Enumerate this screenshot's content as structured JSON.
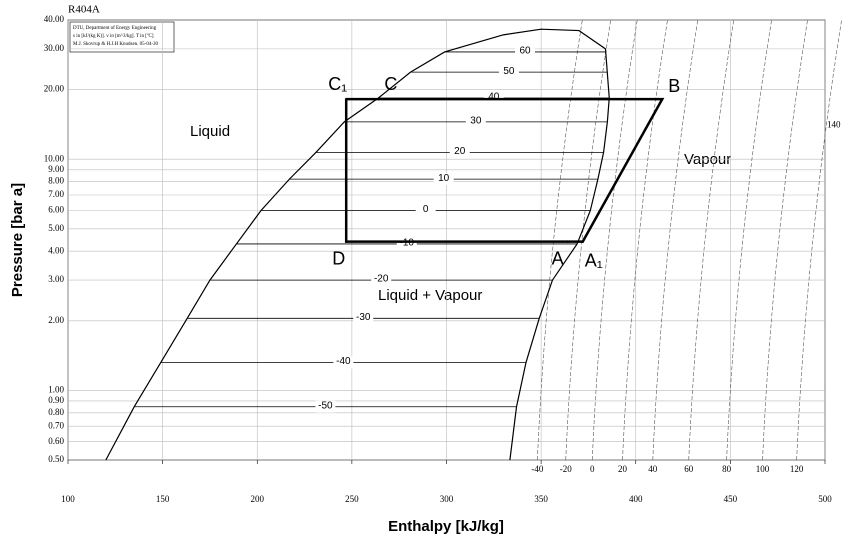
{
  "chart_data": {
    "type": "line",
    "title": "R404A",
    "info": [
      "DTU, Department of Energy Engineering",
      "s in [kJ/(kg K)]. v in [m^3/kg]. T in [ºC]",
      "M.J. Skovrup & H.J.H Knudsen. 05-04-30"
    ],
    "xlabel": "Enthalpy [kJ/kg]",
    "ylabel": "Pressure [bar a]",
    "xlim": [
      100,
      500
    ],
    "ylim": [
      0.5,
      40
    ],
    "log_y": true,
    "grid": true,
    "xticks": [
      100,
      150,
      200,
      250,
      300,
      350,
      400,
      450,
      500
    ],
    "yticks": [
      {
        "value": 0.5,
        "label": "0.50"
      },
      {
        "value": 0.6,
        "label": "0.60"
      },
      {
        "value": 0.7,
        "label": "0.70"
      },
      {
        "value": 0.8,
        "label": "0.80"
      },
      {
        "value": 0.9,
        "label": "0.90"
      },
      {
        "value": 1,
        "label": "1.00"
      },
      {
        "value": 2,
        "label": "2.00"
      },
      {
        "value": 3,
        "label": "3.00"
      },
      {
        "value": 4,
        "label": "4.00"
      },
      {
        "value": 5,
        "label": "5.00"
      },
      {
        "value": 6,
        "label": "6.00"
      },
      {
        "value": 7,
        "label": "7.00"
      },
      {
        "value": 8,
        "label": "8.00"
      },
      {
        "value": 9,
        "label": "9.00"
      },
      {
        "value": 10,
        "label": "10.00"
      },
      {
        "value": 20,
        "label": "20.00"
      },
      {
        "value": 30,
        "label": "30.00"
      },
      {
        "value": 40,
        "label": "40.00"
      }
    ],
    "dome": {
      "h": [
        120,
        135,
        149,
        163,
        175,
        189,
        202,
        217,
        231,
        246,
        264,
        281,
        299,
        330,
        350,
        370,
        384,
        386,
        385,
        383,
        380,
        376,
        369,
        356,
        349,
        342,
        337,
        333.5
      ],
      "p": [
        0.5,
        0.85,
        1.32,
        2.05,
        3.0,
        4.3,
        6.0,
        8.2,
        10.7,
        14.5,
        18.4,
        23.8,
        29.1,
        34.5,
        36.5,
        36,
        30,
        18.4,
        14.5,
        10.7,
        8.2,
        6.0,
        4.3,
        3.0,
        2.05,
        1.32,
        0.85,
        0.5
      ]
    },
    "cycle": {
      "h": [
        247,
        414,
        372,
        247,
        247
      ],
      "p": [
        18.2,
        18.2,
        4.4,
        4.4,
        18.2
      ]
    },
    "points": [
      {
        "label": "C₁",
        "h": 247,
        "p": 18.2
      },
      {
        "label": "C",
        "h": 264,
        "p": 18.2
      },
      {
        "label": "B",
        "h": 414,
        "p": 18.2
      },
      {
        "label": "A",
        "h": 364,
        "p": 4.4
      },
      {
        "label": "A₁",
        "h": 372,
        "p": 4.4
      },
      {
        "label": "D",
        "h": 247,
        "p": 4.4
      }
    ],
    "isotherms": [
      {
        "t": 60,
        "p": 29.1,
        "h": [
          299,
          384
        ]
      },
      {
        "t": 50,
        "p": 23.8,
        "h": [
          281,
          385
        ]
      },
      {
        "t": 40,
        "p": 18.4,
        "h": [
          264,
          386
        ]
      },
      {
        "t": 30,
        "p": 14.5,
        "h": [
          246,
          385
        ]
      },
      {
        "t": 20,
        "p": 10.7,
        "h": [
          231,
          383
        ]
      },
      {
        "t": 10,
        "p": 8.2,
        "h": [
          217,
          380
        ]
      },
      {
        "t": 0,
        "p": 6.0,
        "h": [
          202,
          376
        ]
      },
      {
        "t": -10,
        "p": 4.3,
        "h": [
          189,
          369
        ]
      },
      {
        "t": -20,
        "p": 3.0,
        "h": [
          175,
          356
        ]
      },
      {
        "t": -30,
        "p": 2.05,
        "h": [
          163,
          349
        ]
      },
      {
        "t": -40,
        "p": 1.32,
        "h": [
          149,
          342
        ]
      },
      {
        "t": -50,
        "p": 0.85,
        "h": [
          135,
          337
        ]
      }
    ],
    "superheat_isotherms": [
      {
        "t": -40,
        "h": 348
      },
      {
        "t": -20,
        "h": 363
      },
      {
        "t": 0,
        "h": 377
      },
      {
        "t": 20,
        "h": 393
      },
      {
        "t": 40,
        "h": 409
      },
      {
        "t": 60,
        "h": 428
      },
      {
        "t": 80,
        "h": 448
      },
      {
        "t": 100,
        "h": 467
      },
      {
        "t": 120,
        "h": 485
      },
      {
        "t": 140,
        "h": 500,
        "p": 14
      }
    ],
    "regions": [
      "Liquid",
      "Vapour",
      "Liquid + Vapour"
    ]
  }
}
